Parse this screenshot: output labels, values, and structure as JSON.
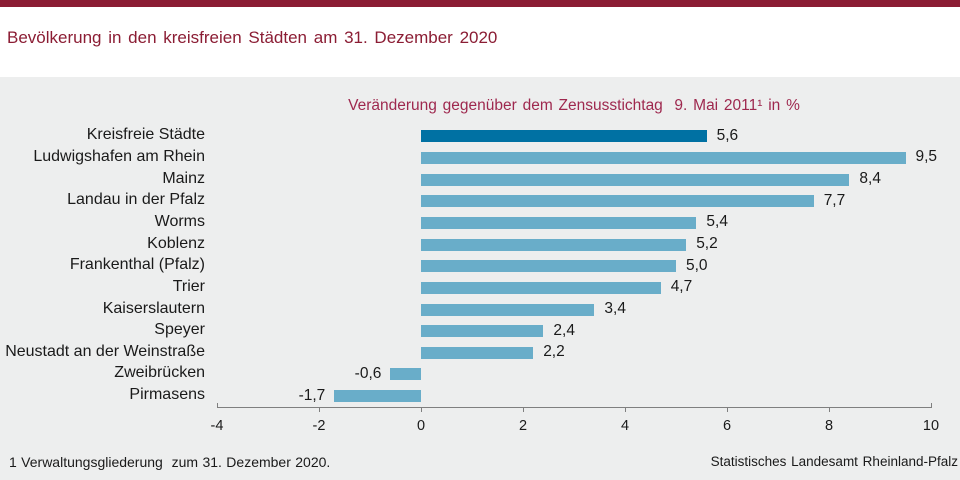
{
  "header": {
    "title": "Bevölkerung in den kreisfreien Städten am 31. Dezember 2020",
    "accent_color": "#8B1D34",
    "title_color": "#8B1D34"
  },
  "chart_data": {
    "type": "bar",
    "orientation": "horizontal",
    "title": "Veränderung gegenüber dem Zensusstichtag  9. Mai 2011¹ in %",
    "title_color": "#9E284E",
    "categories": [
      "Kreisfreie Städte",
      "Ludwigshafen am Rhein",
      "Mainz",
      "Landau in der Pfalz",
      "Worms",
      "Koblenz",
      "Frankenthal (Pfalz)",
      "Trier",
      "Kaiserslautern",
      "Speyer",
      "Neustadt an der Weinstraße",
      "Zweibrücken",
      "Pirmasens"
    ],
    "values": [
      5.6,
      9.5,
      8.4,
      7.7,
      5.4,
      5.2,
      5.0,
      4.7,
      3.4,
      2.4,
      2.2,
      -0.6,
      -1.7
    ],
    "value_labels": [
      "5,6",
      "9,5",
      "8,4",
      "7,7",
      "5,4",
      "5,2",
      "5,0",
      "4,7",
      "3,4",
      "2,4",
      "2,2",
      "-0,6",
      "-1,7"
    ],
    "xlim": [
      -4,
      10
    ],
    "xticks": [
      -4,
      -2,
      0,
      2,
      4,
      6,
      8,
      10
    ],
    "inner_ticks": [
      -2,
      0,
      2,
      4,
      6,
      8
    ],
    "highlight_index": 0,
    "bar_color": "#69ADC9",
    "highlight_color": "#0071A3",
    "background_color": "#EDEEEE",
    "grid": false,
    "legend": false
  },
  "footer": {
    "footnote": "1 Verwaltungsgliederung  zum 31. Dezember 2020.",
    "source": "Statistisches Landesamt Rheinland-Pfalz"
  }
}
